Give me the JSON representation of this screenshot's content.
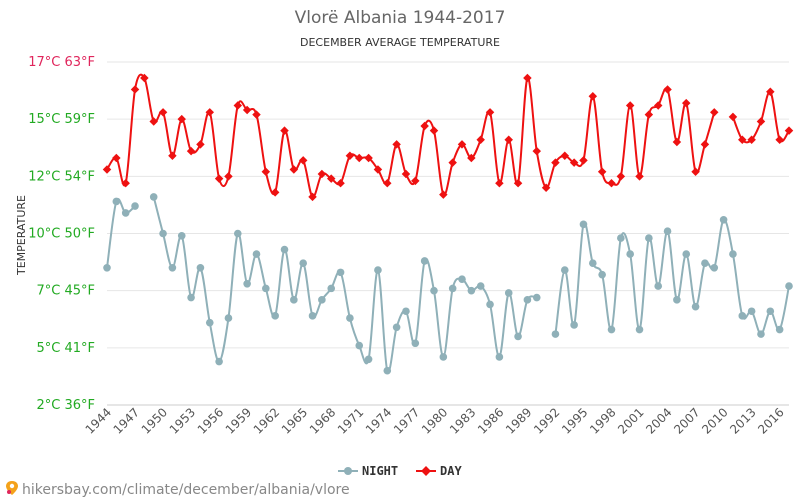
{
  "chart_data": {
    "type": "line",
    "title": "Vlorë Albania 1944-2017",
    "subtitle": "DECEMBER AVERAGE TEMPERATURE",
    "ylabel": "TEMPERATURE",
    "y_ticks": [
      {
        "c": 2,
        "label_c": "2°C",
        "label_f": "36°F",
        "color": "#22aa22"
      },
      {
        "c": 4.5,
        "label_c": "5°C",
        "label_f": "41°F",
        "color": "#22aa22"
      },
      {
        "c": 7,
        "label_c": "7°C",
        "label_f": "45°F",
        "color": "#22aa22"
      },
      {
        "c": 9.5,
        "label_c": "10°C",
        "label_f": "50°F",
        "color": "#22aa22"
      },
      {
        "c": 12,
        "label_c": "12°C",
        "label_f": "54°F",
        "color": "#22aa22"
      },
      {
        "c": 14.5,
        "label_c": "15°C",
        "label_f": "59°F",
        "color": "#22aa22"
      },
      {
        "c": 17,
        "label_c": "17°C",
        "label_f": "63°F",
        "color": "#e0265c"
      }
    ],
    "ylim": [
      2,
      17
    ],
    "xlim": [
      1944,
      2017
    ],
    "x_tick_labels": [
      1944,
      1947,
      1950,
      1953,
      1956,
      1959,
      1962,
      1965,
      1968,
      1971,
      1974,
      1977,
      1980,
      1983,
      1986,
      1989,
      1992,
      1995,
      1998,
      2001,
      2004,
      2007,
      2010,
      2013,
      2016
    ],
    "grid": true,
    "legend_position": "bottom",
    "series": [
      {
        "name": "NIGHT",
        "color": "#8fb0b8",
        "points": [
          [
            1944,
            8.0
          ],
          [
            1945,
            10.9
          ],
          [
            1946,
            10.4
          ],
          [
            1947,
            10.7
          ],
          [
            1949,
            11.1
          ],
          [
            1950,
            9.5
          ],
          [
            1951,
            8.0
          ],
          [
            1952,
            9.4
          ],
          [
            1953,
            6.7
          ],
          [
            1954,
            8.0
          ],
          [
            1955,
            5.6
          ],
          [
            1956,
            3.9
          ],
          [
            1957,
            5.8
          ],
          [
            1958,
            9.5
          ],
          [
            1959,
            7.3
          ],
          [
            1960,
            8.6
          ],
          [
            1961,
            7.1
          ],
          [
            1962,
            5.9
          ],
          [
            1963,
            8.8
          ],
          [
            1964,
            6.6
          ],
          [
            1965,
            8.2
          ],
          [
            1966,
            5.9
          ],
          [
            1967,
            6.6
          ],
          [
            1968,
            7.1
          ],
          [
            1969,
            7.8
          ],
          [
            1970,
            5.8
          ],
          [
            1971,
            4.6
          ],
          [
            1972,
            4.0
          ],
          [
            1973,
            7.9
          ],
          [
            1974,
            3.5
          ],
          [
            1975,
            5.4
          ],
          [
            1976,
            6.1
          ],
          [
            1977,
            4.7
          ],
          [
            1978,
            8.3
          ],
          [
            1979,
            7.0
          ],
          [
            1980,
            4.1
          ],
          [
            1981,
            7.1
          ],
          [
            1982,
            7.5
          ],
          [
            1983,
            7.0
          ],
          [
            1984,
            7.2
          ],
          [
            1985,
            6.4
          ],
          [
            1986,
            4.1
          ],
          [
            1987,
            6.9
          ],
          [
            1988,
            5.0
          ],
          [
            1989,
            6.6
          ],
          [
            1990,
            6.7
          ],
          [
            1992,
            5.1
          ],
          [
            1993,
            7.9
          ],
          [
            1994,
            5.5
          ],
          [
            1995,
            9.9
          ],
          [
            1996,
            8.2
          ],
          [
            1997,
            7.7
          ],
          [
            1998,
            5.3
          ],
          [
            1999,
            9.3
          ],
          [
            2000,
            8.6
          ],
          [
            2001,
            5.3
          ],
          [
            2002,
            9.3
          ],
          [
            2003,
            7.2
          ],
          [
            2004,
            9.6
          ],
          [
            2005,
            6.6
          ],
          [
            2006,
            8.6
          ],
          [
            2007,
            6.3
          ],
          [
            2008,
            8.2
          ],
          [
            2009,
            8.0
          ],
          [
            2010,
            10.1
          ],
          [
            2011,
            8.6
          ],
          [
            2012,
            5.9
          ],
          [
            2013,
            6.1
          ],
          [
            2014,
            5.1
          ],
          [
            2015,
            6.1
          ],
          [
            2016,
            5.3
          ],
          [
            2017,
            7.2
          ]
        ]
      },
      {
        "name": "DAY",
        "color": "#ee1111",
        "points": [
          [
            1944,
            12.3
          ],
          [
            1945,
            12.8
          ],
          [
            1946,
            11.7
          ],
          [
            1947,
            15.8
          ],
          [
            1948,
            16.3
          ],
          [
            1949,
            14.4
          ],
          [
            1950,
            14.8
          ],
          [
            1951,
            12.9
          ],
          [
            1952,
            14.5
          ],
          [
            1953,
            13.1
          ],
          [
            1954,
            13.4
          ],
          [
            1955,
            14.8
          ],
          [
            1956,
            11.9
          ],
          [
            1957,
            12.0
          ],
          [
            1958,
            15.1
          ],
          [
            1959,
            14.9
          ],
          [
            1960,
            14.7
          ],
          [
            1961,
            12.2
          ],
          [
            1962,
            11.3
          ],
          [
            1963,
            14.0
          ],
          [
            1964,
            12.3
          ],
          [
            1965,
            12.7
          ],
          [
            1966,
            11.1
          ],
          [
            1967,
            12.1
          ],
          [
            1968,
            11.9
          ],
          [
            1969,
            11.7
          ],
          [
            1970,
            12.9
          ],
          [
            1971,
            12.8
          ],
          [
            1972,
            12.8
          ],
          [
            1973,
            12.3
          ],
          [
            1974,
            11.7
          ],
          [
            1975,
            13.4
          ],
          [
            1976,
            12.1
          ],
          [
            1977,
            11.8
          ],
          [
            1978,
            14.2
          ],
          [
            1979,
            14.0
          ],
          [
            1980,
            11.2
          ],
          [
            1981,
            12.6
          ],
          [
            1982,
            13.4
          ],
          [
            1983,
            12.8
          ],
          [
            1984,
            13.6
          ],
          [
            1985,
            14.8
          ],
          [
            1986,
            11.7
          ],
          [
            1987,
            13.6
          ],
          [
            1988,
            11.7
          ],
          [
            1989,
            16.3
          ],
          [
            1990,
            13.1
          ],
          [
            1991,
            11.5
          ],
          [
            1992,
            12.6
          ],
          [
            1993,
            12.9
          ],
          [
            1994,
            12.6
          ],
          [
            1995,
            12.7
          ],
          [
            1996,
            15.5
          ],
          [
            1997,
            12.2
          ],
          [
            1998,
            11.7
          ],
          [
            1999,
            12.0
          ],
          [
            2000,
            15.1
          ],
          [
            2001,
            12.0
          ],
          [
            2002,
            14.7
          ],
          [
            2003,
            15.1
          ],
          [
            2004,
            15.8
          ],
          [
            2005,
            13.5
          ],
          [
            2006,
            15.2
          ],
          [
            2007,
            12.2
          ],
          [
            2008,
            13.4
          ],
          [
            2009,
            14.8
          ],
          [
            2011,
            14.6
          ],
          [
            2012,
            13.6
          ],
          [
            2013,
            13.6
          ],
          [
            2014,
            14.4
          ],
          [
            2015,
            15.7
          ],
          [
            2016,
            13.6
          ],
          [
            2017,
            14.0
          ]
        ]
      }
    ]
  },
  "legend": {
    "night_label": "NIGHT",
    "day_label": "DAY"
  },
  "footer": {
    "url": "hikersbay.com/climate/december/albania/vlore"
  }
}
